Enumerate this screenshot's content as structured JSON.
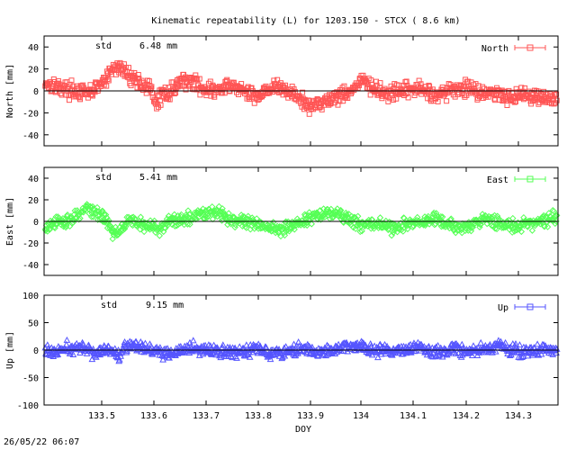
{
  "title": "Kinematic repeatability (L) for 1203.150 - STCX  (  8.6 km)",
  "timestamp": "26/05/22 06:07",
  "xlabel": "DOY",
  "x_ticks": [
    "133.5",
    "133.6",
    "133.7",
    "133.8",
    "133.9",
    "134",
    "134.1",
    "134.2",
    "134.3"
  ],
  "chart_data": [
    {
      "type": "scatter",
      "series_name": "North",
      "ylabel": "North [mm]",
      "std_label": "std",
      "std_value": "6.48 mm",
      "color": "#ff5555",
      "ylim": [
        -50,
        50
      ],
      "y_ticks": [
        "40",
        "20",
        "0",
        "-20",
        "-40"
      ],
      "xlim": [
        133.4,
        134.37
      ],
      "x": [
        133.4,
        133.42,
        133.44,
        133.46,
        133.48,
        133.5,
        133.52,
        133.53,
        133.54,
        133.56,
        133.58,
        133.6,
        133.61,
        133.62,
        133.64,
        133.66,
        133.68,
        133.7,
        133.72,
        133.74,
        133.76,
        133.78,
        133.8,
        133.82,
        133.84,
        133.86,
        133.88,
        133.9,
        133.92,
        133.94,
        133.96,
        133.98,
        134.0,
        134.02,
        134.04,
        134.06,
        134.08,
        134.1,
        134.12,
        134.14,
        134.16,
        134.18,
        134.2,
        134.22,
        134.24,
        134.26,
        134.28,
        134.3,
        134.32,
        134.34,
        134.36,
        134.37
      ],
      "values": [
        8,
        5,
        2,
        0,
        -3,
        3,
        12,
        20,
        22,
        15,
        8,
        2,
        -12,
        -5,
        0,
        10,
        8,
        3,
        0,
        2,
        5,
        -2,
        -5,
        2,
        3,
        0,
        -6,
        -15,
        -10,
        -8,
        -3,
        0,
        10,
        2,
        -2,
        -3,
        0,
        2,
        0,
        -3,
        -1,
        2,
        3,
        0,
        -2,
        -3,
        -5,
        -3,
        -4,
        -6,
        -8,
        -5
      ],
      "scatter_amplitude": 7
    },
    {
      "type": "scatter",
      "series_name": "East",
      "ylabel": "East [mm]",
      "std_label": "std",
      "std_value": "5.41 mm",
      "color": "#55ff55",
      "ylim": [
        -50,
        50
      ],
      "y_ticks": [
        "40",
        "20",
        "0",
        "-20",
        "-40"
      ],
      "xlim": [
        133.4,
        134.37
      ],
      "x": [
        133.4,
        133.42,
        133.44,
        133.46,
        133.48,
        133.5,
        133.52,
        133.53,
        133.54,
        133.56,
        133.58,
        133.6,
        133.62,
        133.64,
        133.66,
        133.68,
        133.7,
        133.72,
        133.74,
        133.76,
        133.78,
        133.8,
        133.82,
        133.84,
        133.86,
        133.88,
        133.9,
        133.92,
        133.94,
        133.96,
        133.98,
        134.0,
        134.02,
        134.04,
        134.06,
        134.08,
        134.1,
        134.12,
        134.14,
        134.16,
        134.18,
        134.2,
        134.22,
        134.24,
        134.26,
        134.28,
        134.3,
        134.32,
        134.34,
        134.36,
        134.37
      ],
      "values": [
        -8,
        -2,
        0,
        5,
        12,
        8,
        0,
        -12,
        -8,
        2,
        -2,
        -5,
        -6,
        0,
        2,
        5,
        8,
        10,
        5,
        2,
        0,
        -3,
        -5,
        -8,
        -4,
        -2,
        3,
        6,
        8,
        5,
        0,
        -3,
        -2,
        -4,
        -6,
        -3,
        -2,
        0,
        2,
        -3,
        -6,
        -4,
        0,
        3,
        -2,
        -5,
        -3,
        -2,
        0,
        3,
        5
      ],
      "scatter_amplitude": 6
    },
    {
      "type": "scatter",
      "series_name": "Up",
      "ylabel": "Up [mm]",
      "std_label": "std",
      "std_value": "9.15 mm",
      "color": "#5555ff",
      "ylim": [
        -100,
        100
      ],
      "y_ticks": [
        "100",
        "50",
        "0",
        "-50",
        "-100"
      ],
      "xlim": [
        133.4,
        134.37
      ],
      "x": [
        133.4,
        133.42,
        133.44,
        133.46,
        133.48,
        133.5,
        133.52,
        133.54,
        133.56,
        133.58,
        133.6,
        133.62,
        133.64,
        133.66,
        133.68,
        133.7,
        133.72,
        133.74,
        133.76,
        133.78,
        133.8,
        133.82,
        133.84,
        133.86,
        133.88,
        133.9,
        133.92,
        133.94,
        133.96,
        133.98,
        134.0,
        134.02,
        134.04,
        134.06,
        134.08,
        134.1,
        134.12,
        134.14,
        134.16,
        134.18,
        134.2,
        134.22,
        134.24,
        134.26,
        134.28,
        134.3,
        134.32,
        134.34,
        134.36,
        134.37
      ],
      "values": [
        0,
        -5,
        2,
        5,
        0,
        -3,
        0,
        -8,
        12,
        8,
        2,
        -5,
        -8,
        0,
        3,
        0,
        -3,
        0,
        -5,
        0,
        2,
        0,
        -5,
        0,
        3,
        0,
        -5,
        -2,
        5,
        8,
        5,
        0,
        -3,
        0,
        2,
        5,
        0,
        -3,
        0,
        2,
        -2,
        0,
        3,
        8,
        0,
        -3,
        -2,
        0,
        3,
        5
      ],
      "scatter_amplitude": 11
    }
  ]
}
